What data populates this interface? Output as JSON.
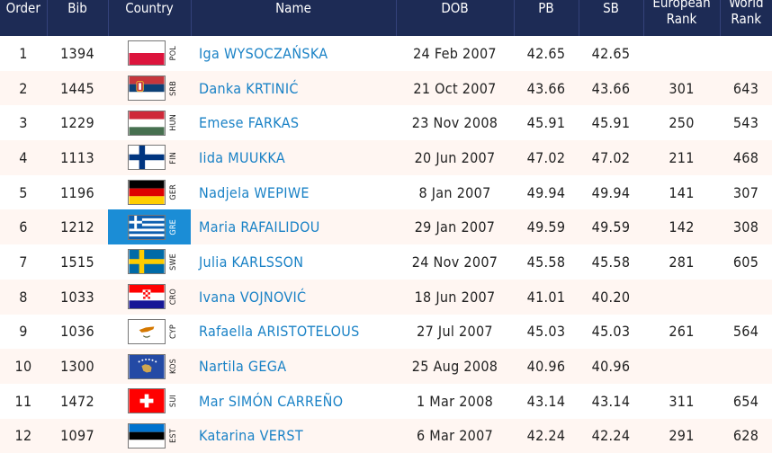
{
  "headers": {
    "order": "Order",
    "bib": "Bib",
    "country": "Country",
    "name": "Name",
    "dob": "DOB",
    "pb": "PB",
    "sb": "SB",
    "european_rank_line1": "European",
    "european_rank_line2": "Rank",
    "world_rank_line1": "World",
    "world_rank_line2": "Rank"
  },
  "rows": [
    {
      "order": "1",
      "bib": "1394",
      "code": "POL",
      "flag": "pol",
      "name": "Iga WYSOCZAŃSKA",
      "dob": "24 Feb 2007",
      "pb": "42.65",
      "sb": "42.65",
      "eur": "",
      "world": ""
    },
    {
      "order": "2",
      "bib": "1445",
      "code": "SRB",
      "flag": "srb",
      "name": "Danka KRTINIĆ",
      "dob": "21 Oct 2007",
      "pb": "43.66",
      "sb": "43.66",
      "eur": "301",
      "world": "643"
    },
    {
      "order": "3",
      "bib": "1229",
      "code": "HUN",
      "flag": "hun",
      "name": "Emese FARKAS",
      "dob": "23 Nov 2008",
      "pb": "45.91",
      "sb": "45.91",
      "eur": "250",
      "world": "543"
    },
    {
      "order": "4",
      "bib": "1113",
      "code": "FIN",
      "flag": "fin",
      "name": "Iida MUUKKA",
      "dob": "20 Jun 2007",
      "pb": "47.02",
      "sb": "47.02",
      "eur": "211",
      "world": "468"
    },
    {
      "order": "5",
      "bib": "1196",
      "code": "GER",
      "flag": "ger",
      "name": "Nadjela WEPIWE",
      "dob": "8 Jan 2007",
      "pb": "49.94",
      "sb": "49.94",
      "eur": "141",
      "world": "307"
    },
    {
      "order": "6",
      "bib": "1212",
      "code": "GRE",
      "flag": "gre",
      "name": "Maria RAFAILIDOU",
      "dob": "29 Jan 2007",
      "pb": "49.59",
      "sb": "49.59",
      "eur": "142",
      "world": "308"
    },
    {
      "order": "7",
      "bib": "1515",
      "code": "SWE",
      "flag": "swe",
      "name": "Julia KARLSSON",
      "dob": "24 Nov 2007",
      "pb": "45.58",
      "sb": "45.58",
      "eur": "281",
      "world": "605"
    },
    {
      "order": "8",
      "bib": "1033",
      "code": "CRO",
      "flag": "cro",
      "name": "Ivana VOJNOVIĆ",
      "dob": "18 Jun 2007",
      "pb": "41.01",
      "sb": "40.20",
      "eur": "",
      "world": ""
    },
    {
      "order": "9",
      "bib": "1036",
      "code": "CYP",
      "flag": "cyp",
      "name": "Rafaella ARISTOTELOUS",
      "dob": "27 Jul 2007",
      "pb": "45.03",
      "sb": "45.03",
      "eur": "261",
      "world": "564"
    },
    {
      "order": "10",
      "bib": "1300",
      "code": "KOS",
      "flag": "kos",
      "name": "Nartila GEGA",
      "dob": "25 Aug 2008",
      "pb": "40.96",
      "sb": "40.96",
      "eur": "",
      "world": ""
    },
    {
      "order": "11",
      "bib": "1472",
      "code": "SUI",
      "flag": "sui",
      "name": "Mar SIMÓN CARREÑO",
      "dob": "1 Mar 2008",
      "pb": "43.14",
      "sb": "43.14",
      "eur": "311",
      "world": "654"
    },
    {
      "order": "12",
      "bib": "1097",
      "code": "EST",
      "flag": "est",
      "name": "Katarina VERST",
      "dob": "6 Mar 2007",
      "pb": "42.24",
      "sb": "42.24",
      "eur": "291",
      "world": "628"
    }
  ],
  "highlighted_country_row": "6",
  "colors": {
    "header_bg": "#1d2b55",
    "name_link": "#1a82c6",
    "row_alt_bg": "#fff6f2",
    "highlight_bg": "#1b8dd6"
  }
}
